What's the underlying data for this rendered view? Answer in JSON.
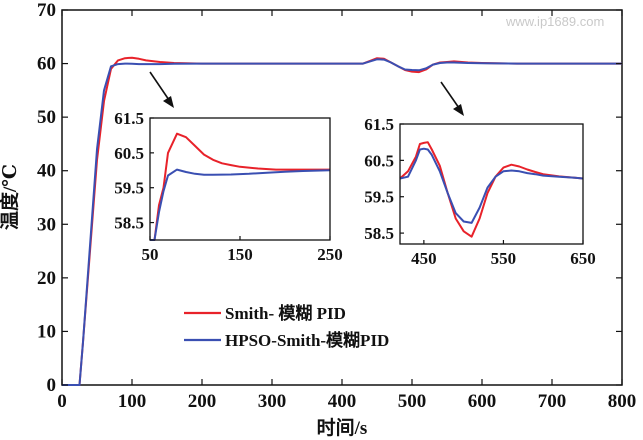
{
  "watermark": "www.ip1689.com",
  "chart_data": [
    {
      "id": "main",
      "type": "line",
      "xlabel": "时间/s",
      "ylabel": "温度/℃",
      "xlim": [
        0,
        800
      ],
      "ylim": [
        0,
        70
      ],
      "xticks": [
        "0",
        "100",
        "200",
        "300",
        "400",
        "500",
        "600",
        "700",
        "800"
      ],
      "yticks": [
        "0",
        "10",
        "20",
        "30",
        "40",
        "50",
        "60",
        "70"
      ],
      "legend": {
        "placement": "bottom-left"
      },
      "series": [
        {
          "name": "Smith- 模糊 PID",
          "color": "#e8222a",
          "x": [
            0,
            25,
            30,
            40,
            50,
            60,
            70,
            80,
            90,
            100,
            110,
            120,
            140,
            160,
            200,
            300,
            400,
            430,
            440,
            450,
            460,
            470,
            480,
            490,
            500,
            510,
            520,
            530,
            540,
            550,
            560,
            580,
            600,
            650,
            700,
            800
          ],
          "y": [
            0,
            0,
            8,
            25,
            42,
            53,
            59,
            60.6,
            61,
            61.1,
            60.9,
            60.6,
            60.3,
            60.1,
            60,
            60,
            60,
            60,
            60.5,
            61,
            60.9,
            60.2,
            59.5,
            58.8,
            58.5,
            58.4,
            58.9,
            59.8,
            60.2,
            60.3,
            60.4,
            60.2,
            60.1,
            60,
            60,
            60
          ]
        },
        {
          "name": "HPSO-Smith-模糊PID",
          "color": "#3a4fb2",
          "x": [
            0,
            25,
            30,
            40,
            50,
            60,
            70,
            80,
            90,
            100,
            110,
            120,
            140,
            160,
            200,
            300,
            400,
            430,
            440,
            450,
            460,
            470,
            480,
            490,
            500,
            510,
            520,
            530,
            540,
            550,
            560,
            580,
            600,
            650,
            700,
            800
          ],
          "y": [
            0,
            0,
            8,
            26,
            44,
            55,
            59.5,
            59.9,
            60,
            59.95,
            59.9,
            59.9,
            59.9,
            59.95,
            60,
            60,
            60,
            60,
            60.4,
            60.8,
            60.75,
            60.2,
            59.5,
            58.9,
            58.8,
            58.75,
            59.1,
            59.8,
            60.1,
            60.2,
            60.2,
            60.1,
            60.05,
            60,
            60,
            60
          ]
        }
      ]
    },
    {
      "id": "inset-1",
      "type": "line",
      "xlim": [
        50,
        250
      ],
      "ylim": [
        58,
        61.5
      ],
      "xticks": [
        "50",
        "150",
        "250"
      ],
      "yticks": [
        "61.5",
        "60.5",
        "59.5",
        "58.5"
      ],
      "series": [
        {
          "name": "Smith- 模糊 PID",
          "color": "#e8222a",
          "x": [
            50,
            55,
            60,
            65,
            70,
            80,
            90,
            100,
            110,
            120,
            130,
            140,
            150,
            170,
            190,
            210,
            230,
            250
          ],
          "y": [
            58,
            58,
            59,
            59.5,
            60.5,
            61.05,
            60.95,
            60.7,
            60.45,
            60.3,
            60.2,
            60.15,
            60.1,
            60.05,
            60.02,
            60.02,
            60.02,
            60.02
          ]
        },
        {
          "name": "HPSO-Smith-模糊PID",
          "color": "#3a4fb2",
          "x": [
            50,
            55,
            60,
            65,
            70,
            80,
            90,
            100,
            110,
            120,
            140,
            160,
            180,
            200,
            220,
            250
          ],
          "y": [
            58,
            58,
            58.8,
            59.4,
            59.85,
            60.02,
            59.95,
            59.9,
            59.87,
            59.87,
            59.88,
            59.9,
            59.93,
            59.96,
            59.98,
            60
          ]
        }
      ]
    },
    {
      "id": "inset-2",
      "type": "line",
      "xlim": [
        420,
        650
      ],
      "ylim": [
        58.2,
        61.5
      ],
      "xticks": [
        "450",
        "550",
        "650"
      ],
      "yticks": [
        "61.5",
        "60.5",
        "59.5",
        "58.5"
      ],
      "series": [
        {
          "name": "Smith- 模糊 PID",
          "color": "#e8222a",
          "x": [
            420,
            430,
            440,
            445,
            450,
            455,
            460,
            470,
            480,
            490,
            500,
            510,
            520,
            530,
            540,
            550,
            560,
            570,
            580,
            590,
            600,
            620,
            640,
            650
          ],
          "y": [
            60,
            60.2,
            60.6,
            60.95,
            60.98,
            61.0,
            60.8,
            60.35,
            59.6,
            58.9,
            58.55,
            58.4,
            58.9,
            59.6,
            60.05,
            60.3,
            60.38,
            60.33,
            60.25,
            60.18,
            60.12,
            60.06,
            60.02,
            60
          ]
        },
        {
          "name": "HPSO-Smith-模糊PID",
          "color": "#3a4fb2",
          "x": [
            420,
            430,
            440,
            445,
            450,
            455,
            460,
            470,
            480,
            490,
            500,
            510,
            520,
            530,
            540,
            550,
            560,
            570,
            580,
            590,
            600,
            620,
            640,
            650
          ],
          "y": [
            60,
            60.05,
            60.5,
            60.8,
            60.82,
            60.8,
            60.65,
            60.2,
            59.6,
            59.05,
            58.82,
            58.78,
            59.2,
            59.75,
            60.05,
            60.2,
            60.22,
            60.2,
            60.15,
            60.12,
            60.08,
            60.05,
            60.02,
            60
          ]
        }
      ]
    }
  ]
}
